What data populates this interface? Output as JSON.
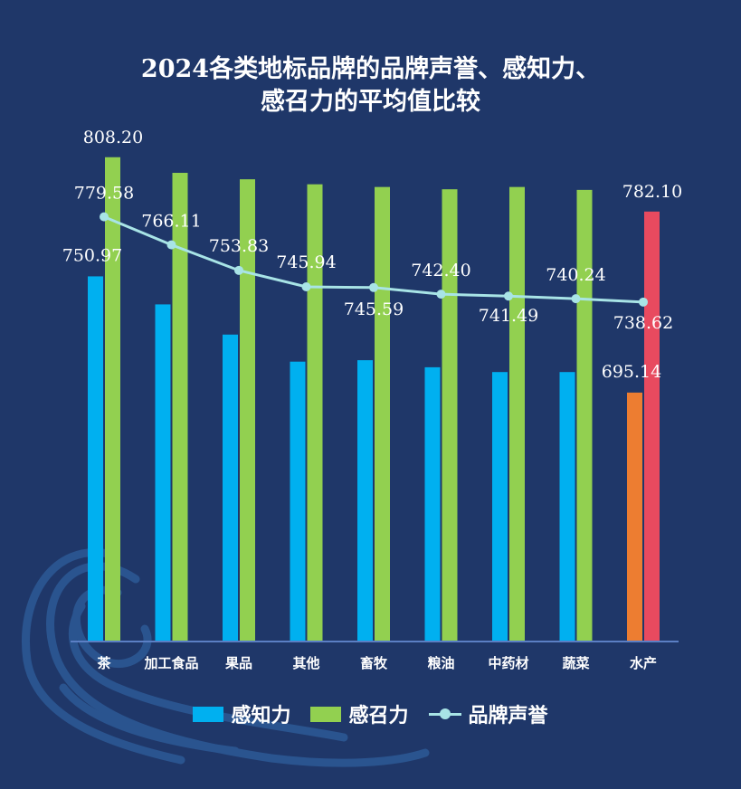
{
  "title": {
    "line1": "2024各类地标品牌的品牌声誉、感知力、",
    "line2": "感召力的平均值比较"
  },
  "chart_data": {
    "type": "bar+line",
    "title": "2024各类地标品牌的品牌声誉、感知力、感召力的平均值比较",
    "categories": [
      "茶",
      "加工食品",
      "果品",
      "其他",
      "畜牧",
      "粮油",
      "中药材",
      "蔬菜",
      "水产"
    ],
    "ylim": [
      576,
      822
    ],
    "series": [
      {
        "name": "感知力",
        "type": "bar",
        "color": "#00b0f0",
        "values": [
          750.97,
          737.5,
          723.0,
          710.0,
          710.7,
          707.3,
          705.0,
          705.0,
          695.14
        ],
        "labels": [
          "750.97",
          "",
          "",
          "",
          "",
          "",
          "",
          "",
          "695.14"
        ]
      },
      {
        "name": "感召力",
        "type": "bar",
        "color": "#92d050",
        "values": [
          808.2,
          800.7,
          797.6,
          795.2,
          793.9,
          792.8,
          793.9,
          792.5,
          782.1
        ],
        "labels": [
          "808.20",
          "",
          "",
          "",
          "",
          "",
          "",
          "",
          "782.10"
        ]
      },
      {
        "name": "品牌声誉",
        "type": "line",
        "color": "#a8e4e6",
        "values": [
          779.58,
          766.11,
          753.83,
          745.94,
          745.59,
          742.4,
          741.49,
          740.24,
          738.62
        ],
        "labels": [
          "779.58",
          "766.11",
          "753.83",
          "745.94",
          "745.59",
          "742.40",
          "741.49",
          "740.24",
          "738.62"
        ]
      }
    ],
    "highlight": {
      "category_index": 8,
      "colors": {
        "感知力": "#ed7d31",
        "感召力": "#e84a5f"
      }
    },
    "legend": [
      "感知力",
      "感召力",
      "品牌声誉"
    ],
    "legend_position": "bottom",
    "grid": false
  }
}
